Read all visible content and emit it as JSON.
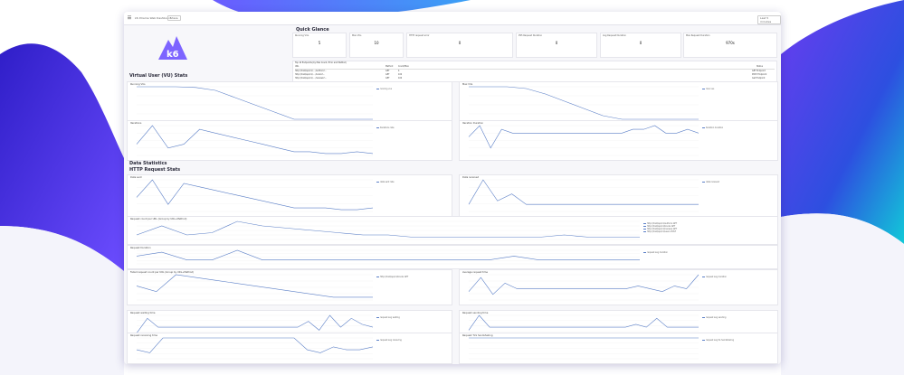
{
  "colors": {
    "accent": "#5b7fc7",
    "brand": "#7d64ff",
    "bg_left": "#3b2fc9",
    "bg_right": "#16c7d9"
  },
  "topbar": {
    "menu_icon": "menu-icon",
    "breadcrumb": "k6 Xtreme Web Dashboard",
    "share_label": "Share",
    "time_range": "Last 5 minutes"
  },
  "logo": {
    "text": "k6"
  },
  "quick_glance": {
    "title": "Quick Glance",
    "stats": [
      {
        "label": "Running VUs",
        "value": "5"
      },
      {
        "label": "Max VUs",
        "value": "10"
      },
      {
        "label": "HTTP request error",
        "value": "0"
      },
      {
        "label": "P95 Request Duration",
        "value": "0"
      },
      {
        "label": "Avg Request Duration",
        "value": "0"
      },
      {
        "label": "Max Request Duration",
        "value": "970s"
      }
    ]
  },
  "table": {
    "title": "Top 10 Endpoints (by Max Count, Error and Method)",
    "columns": [
      "URL",
      "Method",
      "Count/Max",
      "Status"
    ],
    "rows": [
      {
        "url": "http://host/api/v1/... /authors?...",
        "method": "GET",
        "count": "4",
        "status": "GET Endpoint"
      },
      {
        "url": "http://host/api/v1/... /books?...",
        "method": "GET",
        "count": "100",
        "status": "POST Endpoint"
      },
      {
        "url": "http://host/api/v1/... /reviews?...",
        "method": "GET",
        "count": "100",
        "status": "Get Endpoint"
      }
    ]
  },
  "sections": {
    "vu": "Virtual User (VU) Stats",
    "data": "Data Statistics",
    "http": "HTTP Request Stats"
  },
  "panels": [
    {
      "id": "p1",
      "title": "Running VUs",
      "legend": [
        "running vus"
      ]
    },
    {
      "id": "p2",
      "title": "Max VUs",
      "legend": [
        "max vus"
      ]
    },
    {
      "id": "p3",
      "title": "Iterations",
      "legend": [
        "iterations rate"
      ]
    },
    {
      "id": "p4",
      "title": "Iteration Duration",
      "legend": [
        "iteration duration"
      ]
    },
    {
      "id": "p5",
      "title": "Data sent",
      "legend": [
        "data sent rate"
      ]
    },
    {
      "id": "p6",
      "title": "Data received",
      "legend": [
        "data received"
      ]
    },
    {
      "id": "p7",
      "title": "Request count per URL (Group by URL+Method)",
      "legend": [
        "http://host/api/v1/authors GET",
        "http://host/api/v1/books GET",
        "http://host/api/v1/reviews GET",
        "http://host/api/v1/users POST"
      ]
    },
    {
      "id": "p8",
      "title": "Request Duration",
      "legend": [
        "request avg duration"
      ]
    },
    {
      "id": "p9",
      "title": "Failed request count per URL (Group by URL+Method)",
      "legend": [
        "http://host/api/v1/books GET"
      ]
    },
    {
      "id": "p10",
      "title": "Average request time",
      "legend": [
        "request avg duration"
      ]
    },
    {
      "id": "p11",
      "title": "Request waiting time",
      "legend": [
        "request avg waiting"
      ]
    },
    {
      "id": "p12",
      "title": "Request sending time",
      "legend": [
        "request avg sending"
      ]
    },
    {
      "id": "p13",
      "title": "Request receiving time",
      "legend": [
        "request avg receiving"
      ]
    },
    {
      "id": "p14",
      "title": "Request TLS handshaking",
      "legend": [
        "request avg tls handshaking"
      ]
    }
  ],
  "chart_data": {
    "type": "line",
    "series": [
      {
        "panel": "p1",
        "values": [
          10,
          10,
          10,
          9.8,
          9,
          7,
          5,
          3,
          1,
          1,
          1,
          1,
          1
        ]
      },
      {
        "panel": "p2",
        "values": [
          10,
          10,
          10,
          9.5,
          8,
          6,
          4,
          2,
          1,
          1,
          1,
          1,
          1
        ]
      },
      {
        "panel": "p3",
        "values": [
          3,
          8,
          2,
          3,
          7,
          6,
          5,
          4,
          3,
          2,
          1,
          1,
          0.5,
          0.5,
          1,
          0.5
        ]
      },
      {
        "panel": "p4",
        "values": [
          5,
          8,
          2,
          7,
          6,
          6,
          6,
          6,
          6,
          6,
          6,
          6,
          6,
          6,
          6,
          7,
          7,
          8,
          6,
          6,
          7,
          6
        ]
      },
      {
        "panel": "p5",
        "values": [
          4,
          9,
          2,
          8,
          7,
          6,
          5,
          4,
          3,
          2,
          1,
          1,
          1,
          0.5,
          0.5,
          1
        ]
      },
      {
        "panel": "p6",
        "values": [
          2,
          9,
          3,
          5,
          2,
          2,
          2,
          2,
          2,
          2,
          2,
          2,
          2,
          2,
          2,
          2,
          2
        ]
      },
      {
        "panel": "p7",
        "values": [
          2,
          6,
          2,
          3,
          8,
          6,
          5,
          4,
          3,
          2,
          2,
          1,
          1,
          1,
          1,
          1,
          1,
          2,
          1,
          1,
          1
        ]
      },
      {
        "panel": "p8",
        "values": [
          4,
          6,
          2,
          2,
          7,
          2,
          2,
          2,
          2,
          2,
          2,
          2,
          2,
          2,
          2,
          4,
          2,
          2,
          2,
          2,
          2
        ]
      },
      {
        "panel": "p9",
        "values": [
          5,
          3,
          9,
          8,
          7,
          6,
          5,
          4,
          3,
          2,
          1,
          1,
          1
        ]
      },
      {
        "panel": "p10",
        "values": [
          3,
          8,
          2,
          6,
          4,
          4,
          4,
          4,
          4,
          4,
          4,
          4,
          4,
          4,
          5,
          4,
          3,
          5,
          4,
          9
        ]
      },
      {
        "panel": "p11",
        "values": [
          1,
          6,
          3,
          3,
          3,
          3,
          3,
          3,
          3,
          3,
          3,
          3,
          3,
          3,
          3,
          3,
          5,
          2,
          7,
          3,
          6,
          4,
          3
        ]
      },
      {
        "panel": "p12",
        "values": [
          2,
          7,
          3,
          3,
          3,
          3,
          3,
          3,
          3,
          3,
          3,
          3,
          3,
          3,
          3,
          3,
          4,
          3,
          6,
          3,
          3,
          3,
          3
        ]
      },
      {
        "panel": "p13",
        "values": [
          3,
          2,
          7,
          7,
          7,
          7,
          7,
          7,
          7,
          7,
          7,
          7,
          7,
          3,
          2,
          4,
          3,
          3,
          4
        ]
      },
      {
        "panel": "p14",
        "values": [
          5,
          5,
          5,
          5,
          5,
          5,
          5,
          5,
          5,
          5,
          5,
          5,
          5,
          5,
          5,
          5,
          5,
          5
        ]
      }
    ]
  }
}
